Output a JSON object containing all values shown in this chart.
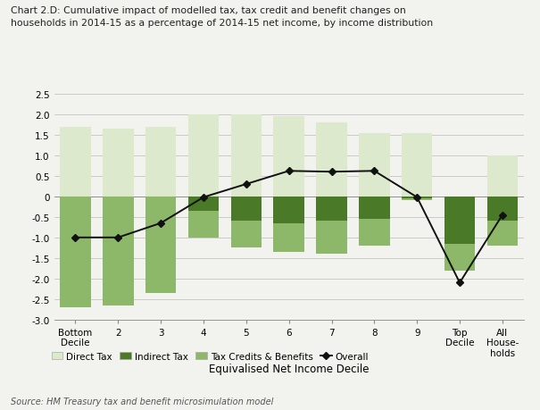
{
  "title_line1": "Chart 2.D: Cumulative impact of modelled tax, tax credit and benefit changes on",
  "title_line2": "households in 2014-15 as a percentage of 2014-15 net income, by income distribution",
  "categories": [
    "Bottom\nDecile",
    "2",
    "3",
    "4",
    "5",
    "6",
    "7",
    "8",
    "9",
    "Top\nDecile",
    "All\nHouse-\nholds"
  ],
  "direct_tax": [
    1.7,
    1.65,
    1.7,
    2.0,
    2.0,
    1.95,
    1.8,
    1.55,
    1.55,
    0.0,
    1.0
  ],
  "indirect_tax": [
    0.0,
    0.0,
    0.0,
    -0.35,
    -0.6,
    -0.65,
    -0.6,
    -0.55,
    -0.05,
    -1.15,
    -0.6
  ],
  "tax_credits_benefits": [
    -2.7,
    -2.65,
    -2.35,
    -0.65,
    -0.65,
    -0.7,
    -0.8,
    -0.65,
    -0.05,
    -0.65,
    -0.6
  ],
  "overall": [
    -1.0,
    -1.0,
    -0.65,
    -0.02,
    0.3,
    0.62,
    0.6,
    0.62,
    -0.02,
    -2.1,
    -0.45
  ],
  "color_direct_tax": "#dce9cc",
  "color_indirect_tax": "#4a7a28",
  "color_tax_credits": "#8db86a",
  "color_overall_line": "#111111",
  "xlabel": "Equivalised Net Income Decile",
  "ylim": [
    -3.0,
    2.5
  ],
  "yticks": [
    -3.0,
    -2.5,
    -2.0,
    -1.5,
    -1.0,
    -0.5,
    0.0,
    0.5,
    1.0,
    1.5,
    2.0,
    2.5
  ],
  "source": "Source: HM Treasury tax and benefit microsimulation model",
  "background_color": "#f2f2ee",
  "legend_labels": [
    "Direct Tax",
    "Indirect Tax",
    "Tax Credits & Benefits",
    "Overall"
  ]
}
